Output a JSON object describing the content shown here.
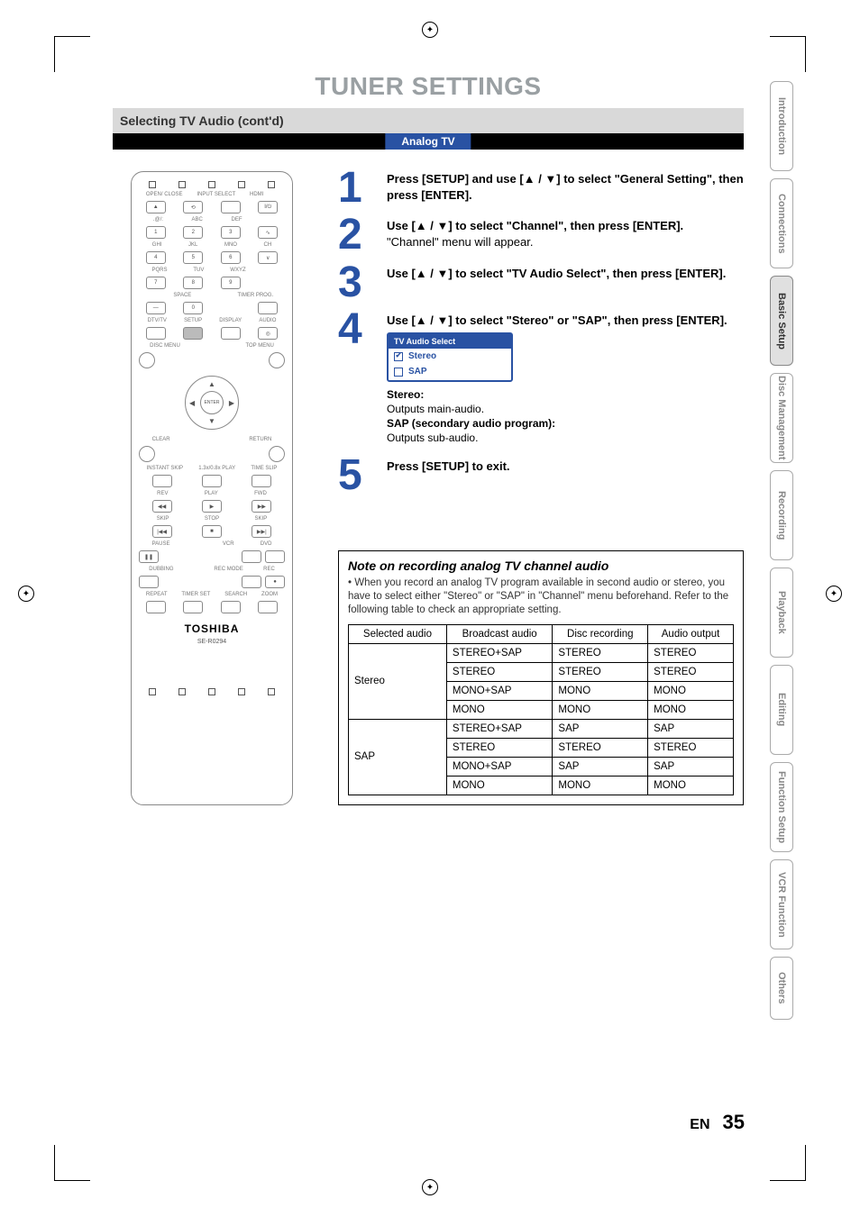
{
  "title": "TUNER SETTINGS",
  "section_header": "Selecting TV Audio (cont'd)",
  "analog_tag": "Analog TV",
  "remote": {
    "labels_row1": [
      "OPEN/\nCLOSE",
      "INPUT\nSELECT",
      "HDMI",
      ""
    ],
    "keypad_labels": [
      ".@/:",
      "ABC",
      "DEF",
      "GHI",
      "JKL",
      "MNO",
      "PQRS",
      "TUV",
      "WXYZ",
      "SPACE"
    ],
    "keypad_nums": [
      "1",
      "2",
      "3",
      "4",
      "5",
      "6",
      "7",
      "8",
      "9",
      "0"
    ],
    "side_btn": "I/⏻",
    "ch_label": "CH",
    "timer_label": "TIMER\nPROG.",
    "mid_labels": [
      "DTV/TV",
      "SETUP",
      "DISPLAY",
      "AUDIO"
    ],
    "disc_menu": "DISC MENU",
    "top_menu": "TOP MENU",
    "enter": "ENTER",
    "clear": "CLEAR",
    "return": "RETURN",
    "instant": "INSTANT\nSKIP",
    "slow": "1.3x/0.8x\nPLAY",
    "timeslip": "TIME SLIP",
    "transport_labels": [
      "REV",
      "PLAY",
      "FWD",
      "SKIP",
      "STOP",
      "SKIP",
      "PAUSE",
      "",
      "VCR",
      "DVD"
    ],
    "dubbing": "DUBBING",
    "recmode": "REC MODE",
    "rec": "REC",
    "bottom_labels": [
      "REPEAT",
      "TIMER SET",
      "SEARCH",
      "ZOOM"
    ],
    "brand": "TOSHIBA",
    "model": "SE-R0294"
  },
  "steps": [
    {
      "num": "1",
      "text": "Press [SETUP] and use [▲ / ▼] to select \"General Setting\", then press [ENTER]."
    },
    {
      "num": "2",
      "text": "Use [▲ / ▼] to select \"Channel\", then press [ENTER].",
      "sub": "\"Channel\" menu will appear."
    },
    {
      "num": "3",
      "text": "Use [▲ / ▼] to select \"TV Audio Select\", then press [ENTER]."
    },
    {
      "num": "4",
      "text": "Use [▲ / ▼] to select \"Stereo\" or \"SAP\", then press [ENTER]."
    },
    {
      "num": "5",
      "text": "Press [SETUP] to exit."
    }
  ],
  "menu": {
    "title": "TV Audio Select",
    "opt1": "Stereo",
    "opt2": "SAP"
  },
  "defs": {
    "stereo_lbl": "Stereo:",
    "stereo_txt": "Outputs main-audio.",
    "sap_lbl": "SAP (secondary audio program):",
    "sap_txt": "Outputs sub-audio."
  },
  "note": {
    "title": "Note on recording analog TV channel audio",
    "text": "When you record an analog TV program available in second audio or stereo, you have to select either \"Stereo\" or \"SAP\" in \"Channel\" menu beforehand. Refer to the following table to check an appropriate setting."
  },
  "table": {
    "headers": [
      "Selected audio",
      "Broadcast audio",
      "Disc recording",
      "Audio output"
    ],
    "rows": [
      [
        "Stereo",
        "STEREO+SAP",
        "STEREO",
        "STEREO"
      ],
      [
        "",
        "STEREO",
        "STEREO",
        "STEREO"
      ],
      [
        "",
        "MONO+SAP",
        "MONO",
        "MONO"
      ],
      [
        "",
        "MONO",
        "MONO",
        "MONO"
      ],
      [
        "SAP",
        "STEREO+SAP",
        "SAP",
        "SAP"
      ],
      [
        "",
        "STEREO",
        "STEREO",
        "STEREO"
      ],
      [
        "",
        "MONO+SAP",
        "SAP",
        "SAP"
      ],
      [
        "",
        "MONO",
        "MONO",
        "MONO"
      ]
    ]
  },
  "tabs": [
    "Introduction",
    "Connections",
    "Basic Setup",
    "Disc Management",
    "Recording",
    "Playback",
    "Editing",
    "Function Setup",
    "VCR Function",
    "Others"
  ],
  "active_tab": "Basic Setup",
  "footer": {
    "lang": "EN",
    "page": "35"
  }
}
